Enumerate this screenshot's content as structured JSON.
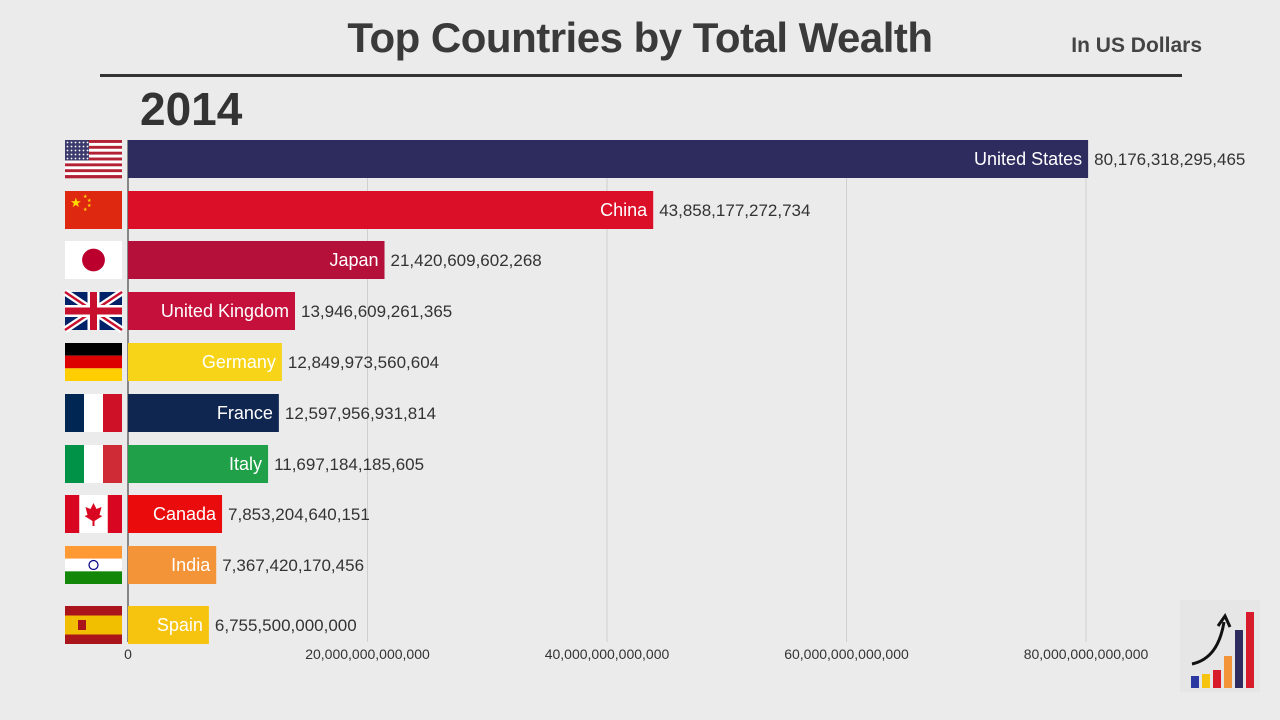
{
  "header": {
    "title": "Top Countries by Total Wealth",
    "unit": "In US Dollars",
    "year": "2014"
  },
  "chart_data": {
    "type": "bar",
    "orientation": "horizontal",
    "title": "Top Countries by Total Wealth",
    "subtitle": "In US Dollars",
    "xlim": [
      0,
      88000000000000
    ],
    "ticks": [
      0,
      20000000000000,
      40000000000000,
      60000000000000,
      80000000000000
    ],
    "tick_labels": [
      "0",
      "20,000,000,000,000",
      "40,000,000,000,000",
      "60,000,000,000,000",
      "80,000,000,000,000"
    ],
    "grid": "vertical",
    "categories": [
      "United States",
      "China",
      "Japan",
      "United Kingdom",
      "Germany",
      "France",
      "Italy",
      "Canada",
      "India",
      "Spain"
    ],
    "values": [
      80176318295465,
      43858177272734,
      21420609602268,
      13946609261365,
      12849973560604,
      12597956931814,
      11697184185605,
      7853204640151,
      7367420170456,
      6755500000000
    ],
    "value_labels": [
      "80,176,318,295,465",
      "43,858,177,272,734",
      "21,420,609,602,268",
      "13,946,609,261,365",
      "12,849,973,560,604",
      "12,597,956,931,814",
      "11,697,184,185,605",
      "7,853,204,640,151",
      "7,367,420,170,456",
      "6,755,500,000,000"
    ],
    "colors": [
      "#2e2b5f",
      "#db0f28",
      "#b5103a",
      "#c4103a",
      "#f7d417",
      "#0f2650",
      "#21a04a",
      "#ea0c0c",
      "#f39438",
      "#f6c40e"
    ],
    "flags": [
      "us-flag-icon",
      "china-flag-icon",
      "japan-flag-icon",
      "uk-flag-icon",
      "germany-flag-icon",
      "france-flag-icon",
      "italy-flag-icon",
      "canada-flag-icon",
      "india-flag-icon",
      "spain-flag-icon"
    ]
  }
}
